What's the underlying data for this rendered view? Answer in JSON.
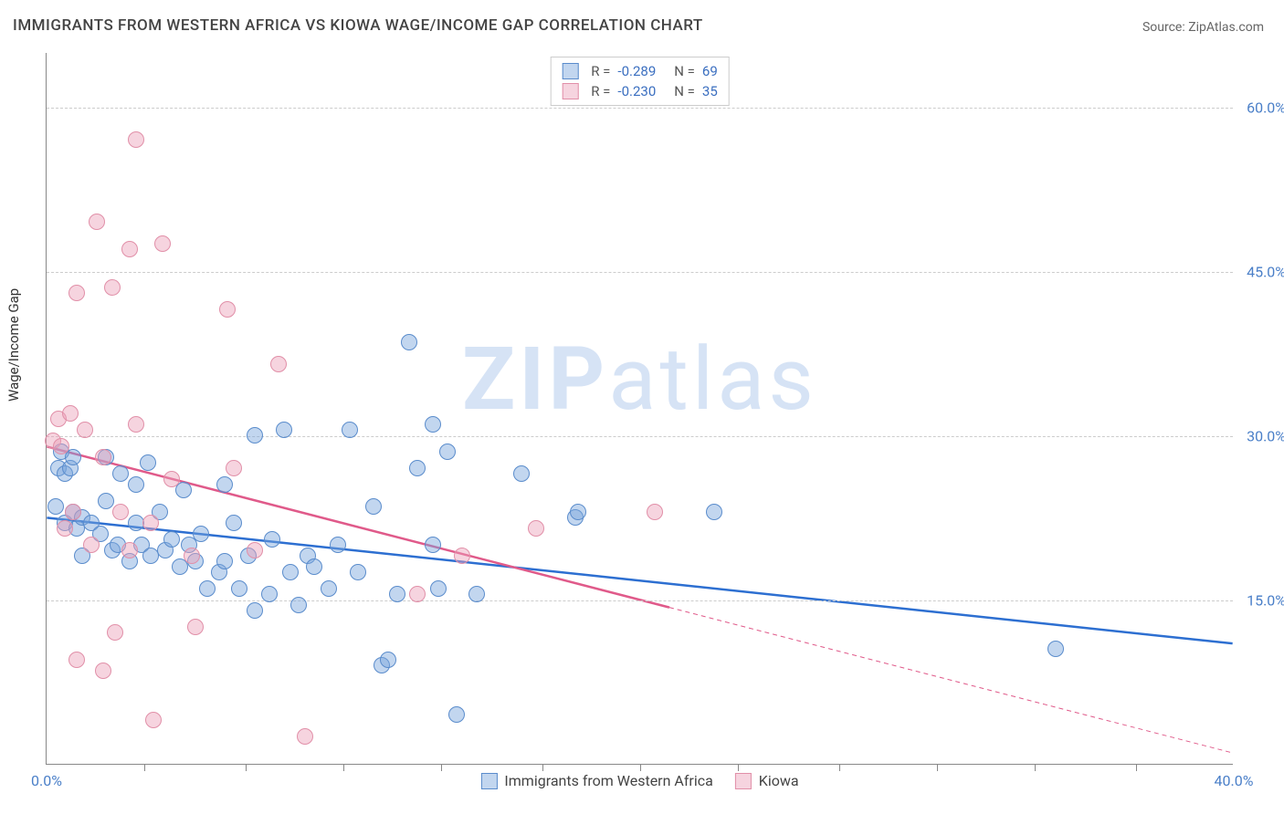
{
  "title": "IMMIGRANTS FROM WESTERN AFRICA VS KIOWA WAGE/INCOME GAP CORRELATION CHART",
  "source": "Source: ZipAtlas.com",
  "ylabel": "Wage/Income Gap",
  "watermark": {
    "prefix": "ZIP",
    "suffix": "atlas",
    "color": "#d6e3f5"
  },
  "chart": {
    "type": "scatter",
    "background_color": "#ffffff",
    "grid_color": "#cccccc",
    "axis_color": "#888888",
    "tick_label_color": "#4a7fc8",
    "label_fontsize": 15,
    "tick_fontsize": 16,
    "title_fontsize": 17,
    "xlim": [
      0.0,
      40.0
    ],
    "ylim": [
      0.0,
      65.0
    ],
    "xticks": [
      0.0,
      40.0
    ],
    "xtick_labels": [
      "0.0%",
      "40.0%"
    ],
    "xtick_minor": [
      3.3,
      6.7,
      10.0,
      13.3,
      16.7,
      20.0,
      23.3,
      26.7,
      30.0,
      33.3,
      36.7
    ],
    "yticks": [
      15.0,
      30.0,
      45.0,
      60.0
    ],
    "ytick_labels": [
      "15.0%",
      "30.0%",
      "45.0%",
      "60.0%"
    ],
    "marker_radius": 9,
    "marker_border_width": 1.5,
    "series": [
      {
        "name": "Immigrants from Western Africa",
        "fill_color": "rgba(120,165,220,0.45)",
        "stroke_color": "#5a8ccc",
        "trend_color": "#2d6fd1",
        "trend_width": 2.5,
        "trend_dash": null,
        "R": "-0.289",
        "N": "69",
        "trend": {
          "x1": 0.0,
          "y1": 22.5,
          "x2": 40.0,
          "y2": 11.0
        },
        "points": [
          [
            0.3,
            23.5
          ],
          [
            0.4,
            27.0
          ],
          [
            0.5,
            28.5
          ],
          [
            0.6,
            26.5
          ],
          [
            0.6,
            22.0
          ],
          [
            0.8,
            27.0
          ],
          [
            0.9,
            28.0
          ],
          [
            0.9,
            23.0
          ],
          [
            1.0,
            21.5
          ],
          [
            1.2,
            22.5
          ],
          [
            1.2,
            19.0
          ],
          [
            1.5,
            22.0
          ],
          [
            1.8,
            21.0
          ],
          [
            2.0,
            28.0
          ],
          [
            2.0,
            24.0
          ],
          [
            2.2,
            19.5
          ],
          [
            2.4,
            20.0
          ],
          [
            2.5,
            26.5
          ],
          [
            2.8,
            18.5
          ],
          [
            3.0,
            25.5
          ],
          [
            3.0,
            22.0
          ],
          [
            3.2,
            20.0
          ],
          [
            3.4,
            27.5
          ],
          [
            3.5,
            19.0
          ],
          [
            3.8,
            23.0
          ],
          [
            4.0,
            19.5
          ],
          [
            4.2,
            20.5
          ],
          [
            4.5,
            18.0
          ],
          [
            4.6,
            25.0
          ],
          [
            4.8,
            20.0
          ],
          [
            5.0,
            18.5
          ],
          [
            5.2,
            21.0
          ],
          [
            5.4,
            16.0
          ],
          [
            5.8,
            17.5
          ],
          [
            6.0,
            18.5
          ],
          [
            6.0,
            25.5
          ],
          [
            6.3,
            22.0
          ],
          [
            6.5,
            16.0
          ],
          [
            6.8,
            19.0
          ],
          [
            7.0,
            14.0
          ],
          [
            7.0,
            30.0
          ],
          [
            7.5,
            15.5
          ],
          [
            7.6,
            20.5
          ],
          [
            8.0,
            30.5
          ],
          [
            8.2,
            17.5
          ],
          [
            8.5,
            14.5
          ],
          [
            8.8,
            19.0
          ],
          [
            9.0,
            18.0
          ],
          [
            9.5,
            16.0
          ],
          [
            9.8,
            20.0
          ],
          [
            10.2,
            30.5
          ],
          [
            10.5,
            17.5
          ],
          [
            11.0,
            23.5
          ],
          [
            11.3,
            9.0
          ],
          [
            11.5,
            9.5
          ],
          [
            11.8,
            15.5
          ],
          [
            12.2,
            38.5
          ],
          [
            12.5,
            27.0
          ],
          [
            13.0,
            20.0
          ],
          [
            13.0,
            31.0
          ],
          [
            13.2,
            16.0
          ],
          [
            13.5,
            28.5
          ],
          [
            13.8,
            4.5
          ],
          [
            14.5,
            15.5
          ],
          [
            16.0,
            26.5
          ],
          [
            17.8,
            22.5
          ],
          [
            17.9,
            23.0
          ],
          [
            22.5,
            23.0
          ],
          [
            34.0,
            10.5
          ]
        ]
      },
      {
        "name": "Kiowa",
        "fill_color": "rgba(235,160,185,0.45)",
        "stroke_color": "#e18fa8",
        "trend_color": "#e05a8a",
        "trend_width": 2.5,
        "trend_dash": "5,4",
        "R": "-0.230",
        "N": "35",
        "trend": {
          "x1": 0.0,
          "y1": 29.0,
          "x2": 40.0,
          "y2": 1.0
        },
        "trend_solid_until_x": 21.0,
        "points": [
          [
            0.2,
            29.5
          ],
          [
            0.4,
            31.5
          ],
          [
            0.5,
            29.0
          ],
          [
            0.6,
            21.5
          ],
          [
            0.8,
            32.0
          ],
          [
            0.9,
            23.0
          ],
          [
            1.0,
            43.0
          ],
          [
            1.0,
            9.5
          ],
          [
            1.3,
            30.5
          ],
          [
            1.5,
            20.0
          ],
          [
            1.7,
            49.5
          ],
          [
            1.9,
            28.0
          ],
          [
            1.9,
            8.5
          ],
          [
            2.2,
            43.5
          ],
          [
            2.3,
            12.0
          ],
          [
            2.5,
            23.0
          ],
          [
            2.8,
            47.0
          ],
          [
            2.8,
            19.5
          ],
          [
            3.0,
            57.0
          ],
          [
            3.0,
            31.0
          ],
          [
            3.5,
            22.0
          ],
          [
            3.6,
            4.0
          ],
          [
            3.9,
            47.5
          ],
          [
            4.2,
            26.0
          ],
          [
            4.9,
            19.0
          ],
          [
            5.0,
            12.5
          ],
          [
            6.1,
            41.5
          ],
          [
            6.3,
            27.0
          ],
          [
            7.0,
            19.5
          ],
          [
            7.8,
            36.5
          ],
          [
            8.7,
            2.5
          ],
          [
            12.5,
            15.5
          ],
          [
            14.0,
            19.0
          ],
          [
            16.5,
            21.5
          ],
          [
            20.5,
            23.0
          ]
        ]
      }
    ],
    "legend_bottom": [
      {
        "label": "Immigrants from Western Africa",
        "fill": "rgba(120,165,220,0.45)",
        "stroke": "#5a8ccc"
      },
      {
        "label": "Kiowa",
        "fill": "rgba(235,160,185,0.45)",
        "stroke": "#e18fa8"
      }
    ]
  }
}
